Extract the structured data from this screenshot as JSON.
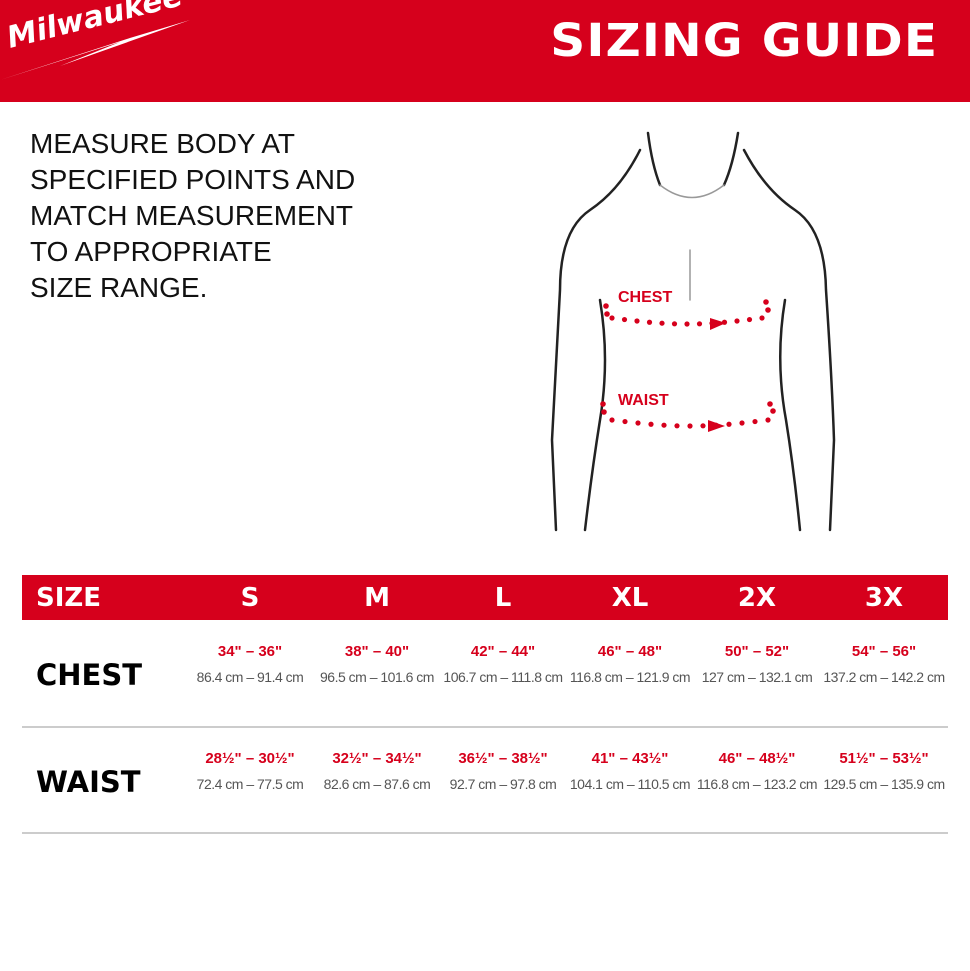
{
  "header": {
    "brand": "Milwaukee",
    "title": "SIZING GUIDE"
  },
  "instructions": [
    "MEASURE BODY AT",
    "SPECIFIED POINTS AND",
    "MATCH MEASUREMENT",
    "TO APPROPRIATE",
    "SIZE RANGE."
  ],
  "figure": {
    "chest_label": "CHEST",
    "waist_label": "WAIST"
  },
  "colors": {
    "brand_red": "#d6001c"
  },
  "table": {
    "header": "SIZE",
    "sizes": [
      "S",
      "M",
      "L",
      "XL",
      "2X",
      "3X"
    ],
    "rows": [
      {
        "label": "CHEST",
        "cells": [
          {
            "in": "34\" – 36\"",
            "cm": "86.4 cm – 91.4 cm"
          },
          {
            "in": "38\" – 40\"",
            "cm": "96.5 cm – 101.6 cm"
          },
          {
            "in": "42\" – 44\"",
            "cm": "106.7 cm – 111.8 cm"
          },
          {
            "in": "46\" – 48\"",
            "cm": "116.8 cm – 121.9 cm"
          },
          {
            "in": "50\" – 52\"",
            "cm": "127 cm – 132.1 cm"
          },
          {
            "in": "54\" – 56\"",
            "cm": "137.2 cm – 142.2 cm"
          }
        ]
      },
      {
        "label": "WAIST",
        "cells": [
          {
            "in": "28½\" – 30½\"",
            "cm": "72.4 cm – 77.5 cm"
          },
          {
            "in": "32½\" – 34½\"",
            "cm": "82.6 cm – 87.6 cm"
          },
          {
            "in": "36½\" – 38½\"",
            "cm": "92.7 cm – 97.8 cm"
          },
          {
            "in": "41\" – 43½\"",
            "cm": "104.1 cm – 110.5 cm"
          },
          {
            "in": "46\" – 48½\"",
            "cm": "116.8 cm – 123.2 cm"
          },
          {
            "in": "51½\" – 53½\"",
            "cm": "129.5 cm – 135.9 cm"
          }
        ]
      }
    ]
  }
}
